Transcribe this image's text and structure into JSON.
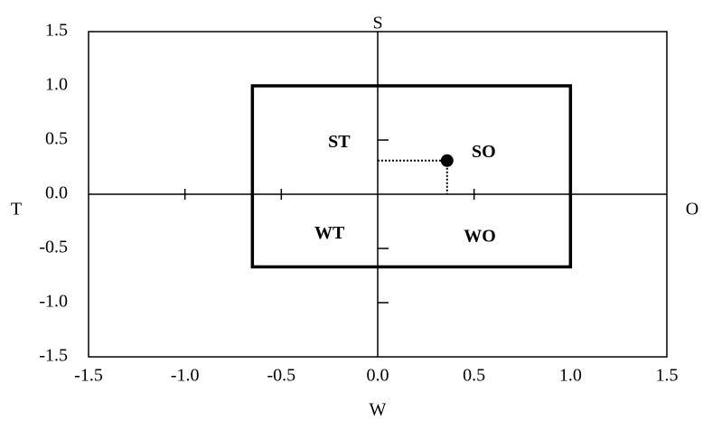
{
  "chart_data": {
    "type": "scatter",
    "x": [
      0.36
    ],
    "values": [
      0.31
    ],
    "color": "#000000",
    "region": {
      "x": [
        -0.65,
        1.0
      ],
      "y": [
        -0.67,
        1.0
      ]
    },
    "xlabel": "W",
    "ylabel": "S",
    "left_label": "T",
    "right_label": "O",
    "annotations": [
      {
        "text": "ST",
        "x": -0.2,
        "y": 0.47
      },
      {
        "text": "SO",
        "x": 0.55,
        "y": 0.38
      },
      {
        "text": "WT",
        "x": -0.25,
        "y": -0.37
      },
      {
        "text": "WO",
        "x": 0.53,
        "y": -0.4
      }
    ],
    "xlim": [
      -1.5,
      1.5
    ],
    "ylim": [
      -1.5,
      1.5
    ],
    "xticks": [
      -1.5,
      {
        "value": -1,
        "label": "-1.0"
      },
      -0.5,
      {
        "value": 0,
        "label": "0.0"
      },
      0.5,
      {
        "value": 1,
        "label": "1.0"
      },
      1.5
    ],
    "yticks": [
      -1.5,
      {
        "value": -1,
        "label": "-1.0"
      },
      -0.5,
      {
        "value": 0,
        "label": "0.0"
      },
      0.5,
      {
        "value": 1,
        "label": "1.0"
      },
      1.5
    ]
  }
}
